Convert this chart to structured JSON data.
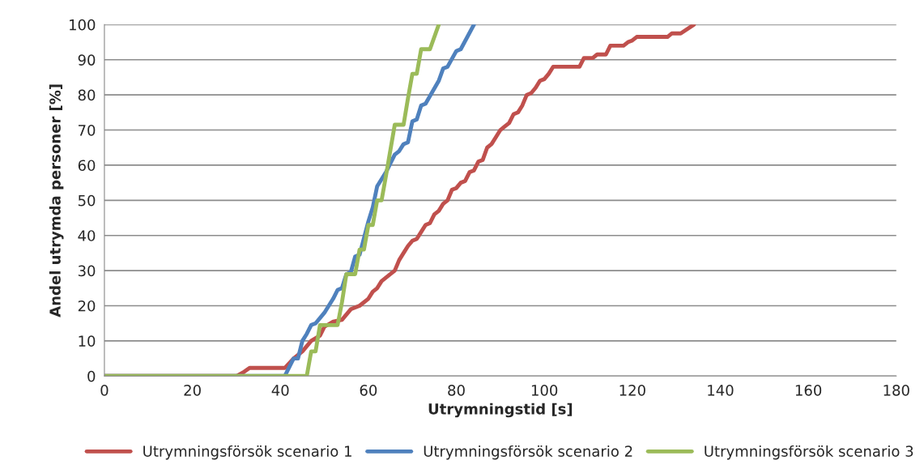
{
  "chart_data": {
    "type": "line",
    "xlabel": "Utrymningstid [s]",
    "ylabel": "Andel utrymda personer [%]",
    "xlim": [
      0,
      180
    ],
    "xticks": [
      0,
      20,
      40,
      60,
      80,
      100,
      120,
      140,
      160,
      180
    ],
    "ylim": [
      0,
      100
    ],
    "yticks": [
      0,
      10,
      20,
      30,
      40,
      50,
      60,
      70,
      80,
      90,
      100
    ],
    "grid": "y",
    "legend": "bottom",
    "marker": "none",
    "line_style": "solid",
    "series": [
      {
        "name": "Utrymningsförsök scenario 1",
        "color": "#c0504d",
        "x": [
          0,
          30,
          31.5,
          33,
          41,
          43,
          45,
          47,
          49,
          50,
          52,
          54,
          56,
          58,
          60,
          61,
          62,
          63,
          65,
          66,
          67,
          68,
          69,
          70,
          71,
          72,
          73,
          74,
          75,
          76,
          77,
          78,
          79,
          80,
          81,
          82,
          83,
          84,
          85,
          86,
          87,
          88,
          89,
          90,
          91,
          92,
          93,
          94,
          95,
          96,
          97,
          98,
          99,
          100,
          101,
          102,
          108,
          109,
          111,
          112,
          114,
          115,
          118,
          119,
          120,
          121,
          128,
          129,
          131,
          134
        ],
        "values": [
          0,
          0,
          1,
          2.3,
          2.3,
          5,
          7,
          10,
          11.5,
          14,
          15.5,
          16,
          19,
          20,
          22,
          24,
          25,
          27,
          29,
          30,
          33,
          35,
          37,
          38.5,
          39,
          41,
          43,
          43.5,
          46,
          47,
          49,
          50,
          53,
          53.5,
          55,
          55.5,
          58,
          58.5,
          61,
          61.5,
          65,
          66,
          68,
          70,
          71,
          72,
          74.5,
          75,
          77,
          80,
          80.5,
          82,
          84,
          84.5,
          86,
          88,
          88,
          90.5,
          90.5,
          91.5,
          91.5,
          94,
          94,
          95,
          95.5,
          96.5,
          96.5,
          97.5,
          97.5,
          100
        ]
      },
      {
        "name": "Utrymningsförsök scenario 2",
        "color": "#4f81bd",
        "x": [
          0,
          41,
          43,
          44,
          45,
          46,
          47,
          48,
          50,
          52,
          53,
          54,
          55,
          56,
          57,
          58,
          60,
          61,
          62,
          64,
          66,
          67,
          68,
          69,
          70,
          71,
          72,
          73,
          76,
          77,
          78,
          80,
          81,
          84
        ],
        "values": [
          0,
          0,
          5,
          5,
          10,
          12,
          14.5,
          15,
          18,
          22,
          24.5,
          25,
          29,
          29.5,
          34,
          34.5,
          44,
          48,
          54,
          58,
          63,
          64,
          66,
          66.5,
          72.5,
          73,
          77,
          77.5,
          84,
          87.5,
          88,
          92.5,
          93,
          100
        ]
      },
      {
        "name": "Utrymningsförsök scenario 3",
        "color": "#9bbb59",
        "x": [
          0,
          46,
          47,
          48,
          49,
          53,
          54,
          55,
          57,
          58,
          59,
          60,
          61,
          62,
          63,
          64,
          66,
          68,
          69,
          70,
          71,
          72,
          74,
          76
        ],
        "values": [
          0,
          0,
          7,
          7,
          14.5,
          14.5,
          21,
          29,
          29,
          36,
          36,
          43,
          43,
          50,
          50,
          57,
          71.5,
          71.5,
          79,
          86,
          86,
          93,
          93,
          100
        ]
      }
    ]
  }
}
